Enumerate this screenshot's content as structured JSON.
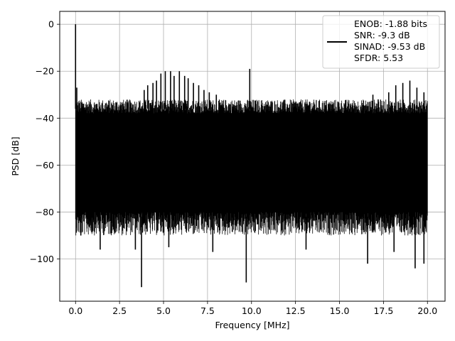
{
  "chart_data": {
    "type": "line",
    "title": "",
    "xlabel": "Frequency [MHz]",
    "ylabel": "PSD [dB]",
    "xlim": [
      -0.9,
      21.0
    ],
    "ylim": [
      -118.0,
      5.5
    ],
    "xticks": [
      0.0,
      2.5,
      5.0,
      7.5,
      10.0,
      12.5,
      15.0,
      17.5,
      20.0
    ],
    "xtick_labels": [
      "0.0",
      "2.5",
      "5.0",
      "7.5",
      "10.0",
      "12.5",
      "15.0",
      "17.5",
      "20.0"
    ],
    "yticks": [
      0,
      -20,
      -40,
      -60,
      -80,
      -100
    ],
    "ytick_labels": [
      "0",
      "−20",
      "−40",
      "−60",
      "−80",
      "−100"
    ],
    "grid": true,
    "line_color": "#000000",
    "legend": {
      "placement": "top-right",
      "entries": [
        "ENOB: -1.88 bits",
        "SNR: -9.3 dB",
        "SINAD: -9.53 dB",
        "SFDR: 5.53"
      ]
    },
    "series": [
      {
        "name": "",
        "noise_band": {
          "x_start": 0.0,
          "x_end": 20.0,
          "upper_dB": -38,
          "lower_dB": -80
        },
        "peaks": [
          {
            "x": 0.0,
            "y": 0.0
          },
          {
            "x": 0.07,
            "y": -27
          },
          {
            "x": 3.9,
            "y": -28
          },
          {
            "x": 4.1,
            "y": -26
          },
          {
            "x": 4.4,
            "y": -25
          },
          {
            "x": 4.6,
            "y": -24
          },
          {
            "x": 4.85,
            "y": -21
          },
          {
            "x": 5.1,
            "y": -20
          },
          {
            "x": 5.4,
            "y": -20
          },
          {
            "x": 5.6,
            "y": -22
          },
          {
            "x": 5.9,
            "y": -20
          },
          {
            "x": 6.2,
            "y": -22
          },
          {
            "x": 6.4,
            "y": -23
          },
          {
            "x": 6.7,
            "y": -25
          },
          {
            "x": 7.0,
            "y": -26
          },
          {
            "x": 7.3,
            "y": -28
          },
          {
            "x": 7.6,
            "y": -29
          },
          {
            "x": 8.0,
            "y": -30
          },
          {
            "x": 9.9,
            "y": -19
          },
          {
            "x": 13.3,
            "y": -33
          },
          {
            "x": 16.9,
            "y": -30
          },
          {
            "x": 17.2,
            "y": -32
          },
          {
            "x": 17.8,
            "y": -29
          },
          {
            "x": 18.2,
            "y": -26
          },
          {
            "x": 18.6,
            "y": -25
          },
          {
            "x": 19.0,
            "y": -24
          },
          {
            "x": 19.4,
            "y": -27
          },
          {
            "x": 19.8,
            "y": -29
          }
        ],
        "dips": [
          {
            "x": 0.3,
            "y": -90
          },
          {
            "x": 1.4,
            "y": -96
          },
          {
            "x": 3.4,
            "y": -96
          },
          {
            "x": 3.75,
            "y": -112
          },
          {
            "x": 5.3,
            "y": -95
          },
          {
            "x": 7.8,
            "y": -97
          },
          {
            "x": 9.7,
            "y": -110
          },
          {
            "x": 13.1,
            "y": -96
          },
          {
            "x": 16.6,
            "y": -102
          },
          {
            "x": 18.1,
            "y": -97
          },
          {
            "x": 19.3,
            "y": -104
          },
          {
            "x": 19.8,
            "y": -102
          }
        ]
      }
    ]
  }
}
